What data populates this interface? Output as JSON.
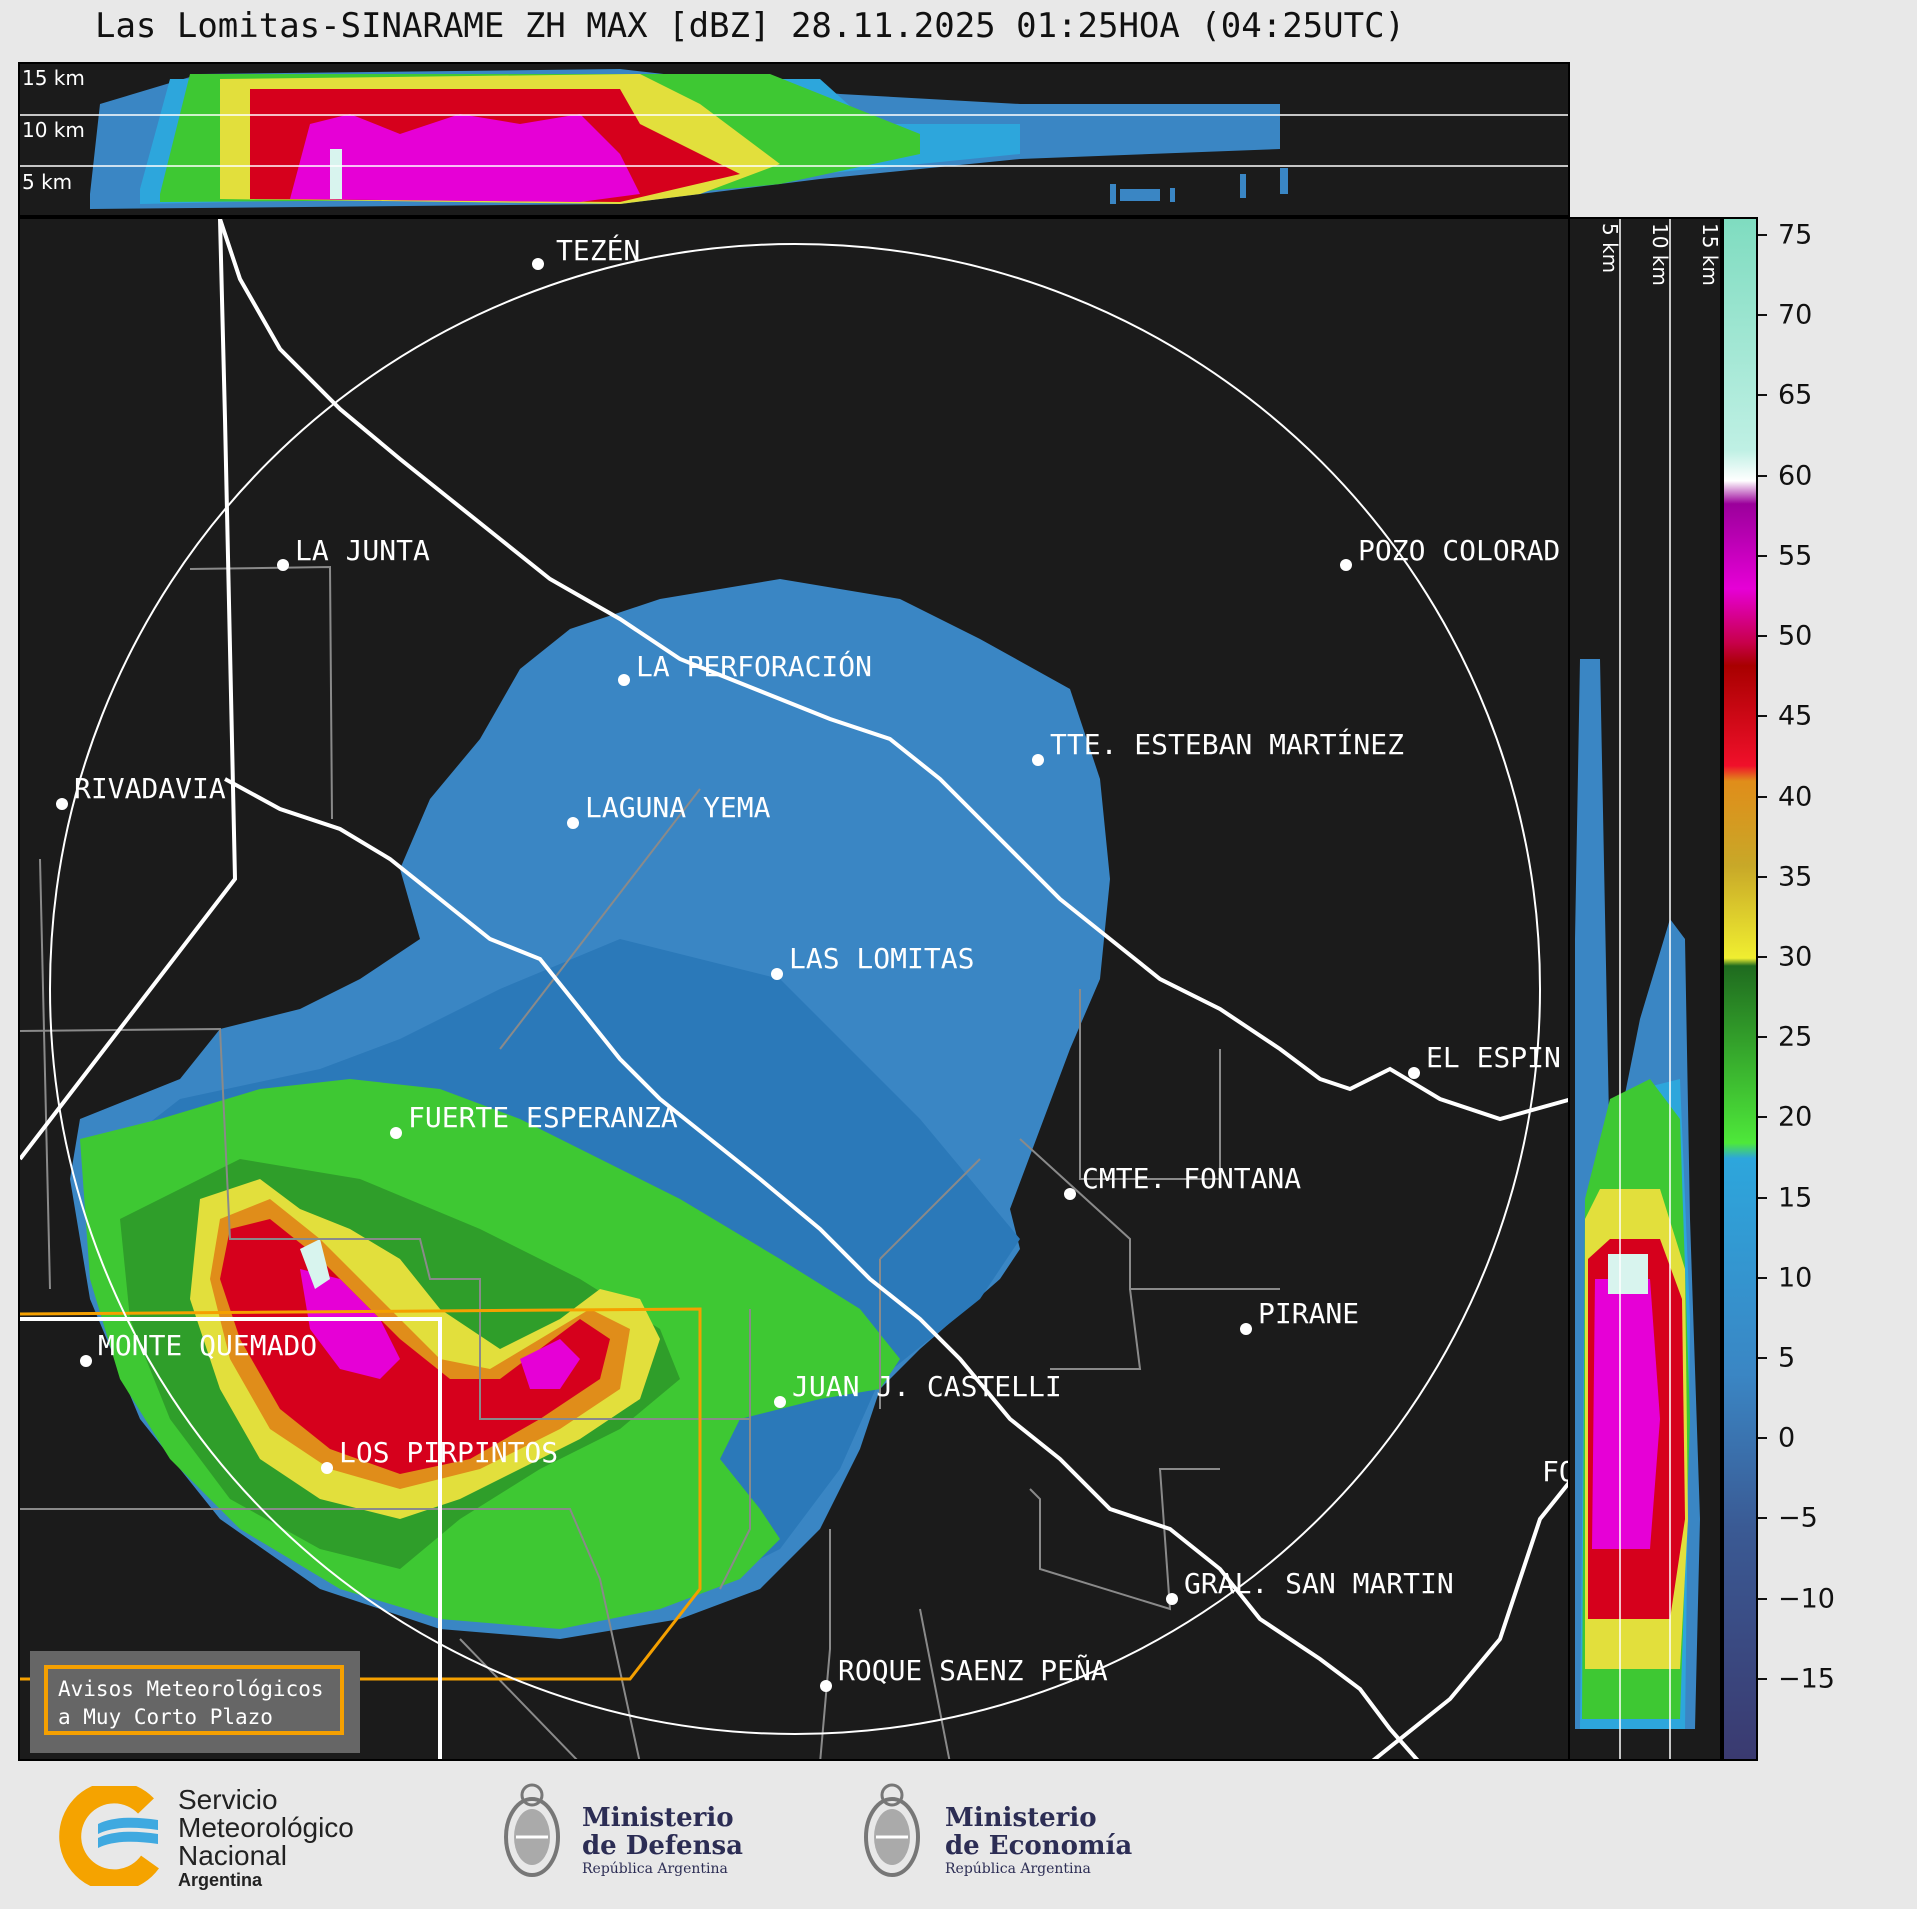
{
  "title": "Las Lomitas-SINARAME ZH MAX [dBZ] 28.11.2025 01:25HOA (04:25UTC)",
  "top_panel": {
    "height_labels": [
      "15 km",
      "10 km",
      "5 km"
    ]
  },
  "side_panel": {
    "height_labels": [
      "5 km",
      "10 km",
      "15 km"
    ]
  },
  "colorbar": {
    "ticks": [
      "75",
      "70",
      "65",
      "60",
      "55",
      "50",
      "45",
      "40",
      "35",
      "30",
      "25",
      "20",
      "15",
      "10",
      "5",
      "0",
      "−5",
      "−10",
      "−15"
    ],
    "tick_values": [
      75,
      70,
      65,
      60,
      55,
      50,
      45,
      40,
      35,
      30,
      25,
      20,
      15,
      10,
      5,
      0,
      -5,
      -10,
      -15
    ],
    "range": [
      -20,
      76
    ],
    "unit": "dBZ"
  },
  "cities": [
    {
      "name": "TEZÉN",
      "label": "TEZÉN"
    },
    {
      "name": "LA JUNTA",
      "label": "LA JUNTA"
    },
    {
      "name": "POZO COLORADO",
      "label": "POZO COLORAD"
    },
    {
      "name": "LA PERFORACIÓN",
      "label": "LA PERFORACIÓN"
    },
    {
      "name": "TTE. ESTEBAN MARTÍNEZ",
      "label": "TTE. ESTEBAN MARTÍNEZ"
    },
    {
      "name": "RIVADAVIA",
      "label": "RIVADAVIA"
    },
    {
      "name": "LAGUNA YEMA",
      "label": "LAGUNA YEMA"
    },
    {
      "name": "LAS LOMITAS",
      "label": "LAS LOMITAS"
    },
    {
      "name": "EL ESPINILLO",
      "label": "EL ESPIN"
    },
    {
      "name": "FUERTE ESPERANZA",
      "label": "FUERTE ESPERANZA"
    },
    {
      "name": "CMTE. FONTANA",
      "label": "CMTE. FONTANA"
    },
    {
      "name": "PIRANE",
      "label": "PIRANE"
    },
    {
      "name": "MONTE QUEMADO",
      "label": "MONTE QUEMADO"
    },
    {
      "name": "JUAN J. CASTELLI",
      "label": "JUAN J. CASTELLI"
    },
    {
      "name": "LOS PIRPINTOS",
      "label": "LOS PIRPINTOS"
    },
    {
      "name": "GRAL. SAN MARTIN",
      "label": "GRAL. SAN MARTIN"
    },
    {
      "name": "ROQUE SAENZ PEÑA",
      "label": "ROQUE SAENZ PEÑA"
    },
    {
      "name": "FORMOSA",
      "label": "FO"
    }
  ],
  "notice": {
    "line1": "Avisos Meteorológicos",
    "line2": "a Muy Corto Plazo"
  },
  "footer": {
    "smn": {
      "line1": "Servicio",
      "line2": "Meteorológico",
      "line3": "Nacional",
      "line4": "Argentina"
    },
    "defensa": {
      "line1": "Ministerio",
      "line2": "de Defensa",
      "line3": "República Argentina"
    },
    "economia": {
      "line1": "Ministerio",
      "line2": "de Economía",
      "line3": "República Argentina"
    }
  },
  "colors": {
    "background": "#1b1b1b",
    "weak_echo": "#3a86c4",
    "moderate_echo": "#3ec833",
    "strong_echo": "#d6001c",
    "intense_echo": "#e600d6",
    "warning_box": "#f5a000"
  }
}
